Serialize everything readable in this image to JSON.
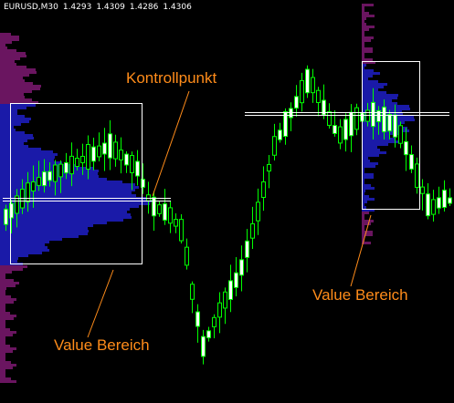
{
  "header": {
    "symbol_timeframe": "EURUSD,M30",
    "open": "1.4293",
    "high": "1.4309",
    "low": "1.4286",
    "close": "1.4306"
  },
  "annotations": {
    "point_of_control": "Kontrollpunkt",
    "value_area_left": "Value Bereich",
    "value_area_right": "Value Bereich"
  },
  "colors": {
    "background": "#000000",
    "bull_candle_fill": "#ffffff",
    "bear_candle_fill": "#000000",
    "candle_outline": "#00ff00",
    "annotation_text": "#ff8c1a",
    "value_area_box": "#ffffff",
    "profile_value_area": "#1a1aa8",
    "profile_outside": "#6a1560"
  },
  "icons": {
    "annotation_pointer": "leader-line"
  }
}
